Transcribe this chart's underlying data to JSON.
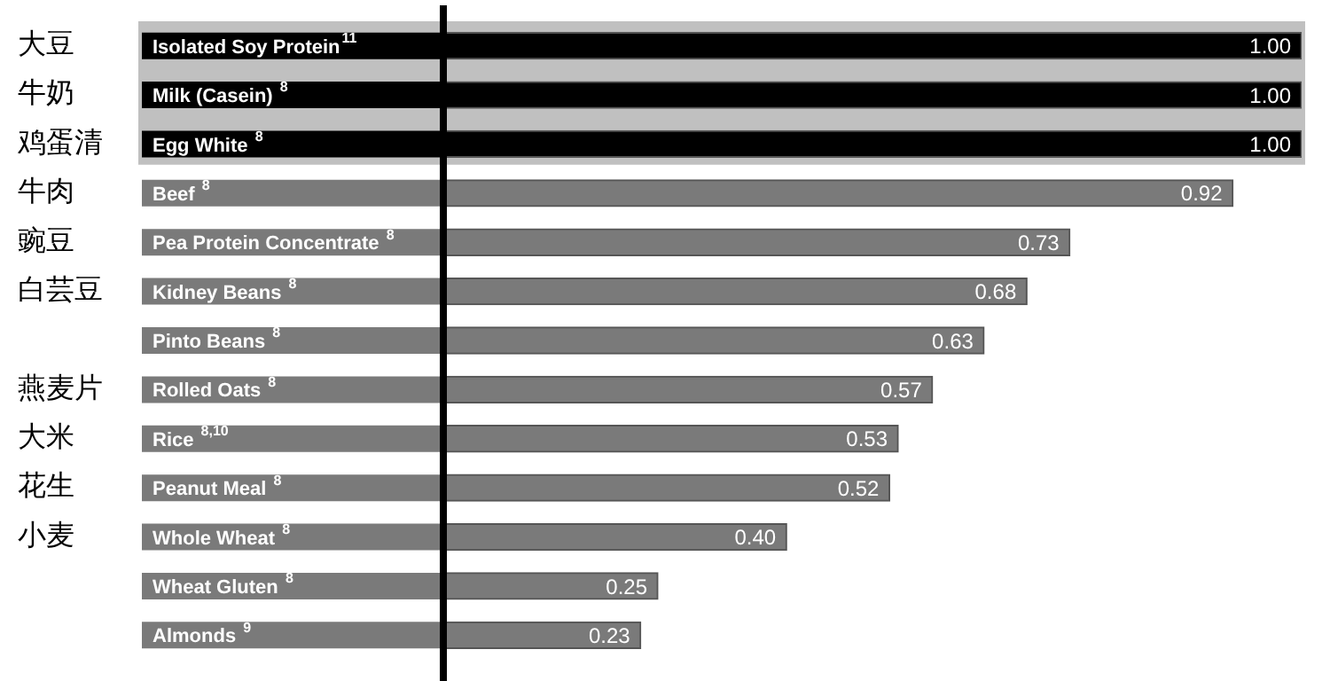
{
  "chart_data": {
    "type": "bar",
    "orientation": "horizontal",
    "legend": false,
    "categories": [
      "大豆",
      "牛奶",
      "鸡蛋清",
      "牛肉",
      "豌豆",
      "白芸豆",
      null,
      "燕麦片",
      "大米",
      "花生",
      "小麦",
      null,
      null
    ],
    "values": [
      1.0,
      1.0,
      1.0,
      0.92,
      0.73,
      0.68,
      0.63,
      0.57,
      0.53,
      0.52,
      0.4,
      0.25,
      0.23
    ],
    "value_labels": [
      "1.00",
      "1.00",
      "1.00",
      "0.92",
      "0.73",
      "0.68",
      "0.63",
      "0.57",
      "0.53",
      "0.52",
      "0.40",
      "0.25",
      "0.23"
    ],
    "colors": [
      "#000000",
      "#000000",
      "#000000",
      "#7a7a7a",
      "#7a7a7a",
      "#7a7a7a",
      "#7a7a7a",
      "#7a7a7a",
      "#7a7a7a",
      "#7a7a7a",
      "#7a7a7a",
      "#7a7a7a",
      "#7a7a7a"
    ],
    "bands": [
      {
        "axis": "y",
        "from": "大豆",
        "to": "鸡蛋清",
        "color": "#c0c0c0"
      }
    ],
    "ref_lines": [
      {
        "axis": "x",
        "value": 0,
        "color": "#000000"
      }
    ],
    "annotations": [
      "Isolated Soy Protein$^{11}$",
      "Milk (Casein) $^{8}$",
      "Egg White $^{8}$",
      "Beef $^{8}$",
      "Pea Protein Concentrate $^{8}$",
      "Kidney Beans $^{8}$",
      "Pinto Beans $^{8}$",
      "Rolled Oats $^{8}$",
      "Rice $^{8,10}$",
      "Peanut Meal $^{8}$",
      "Whole Wheat $^{8}$",
      "Wheat Gluten $^{8}$",
      "Almonds $^{9}$"
    ]
  }
}
